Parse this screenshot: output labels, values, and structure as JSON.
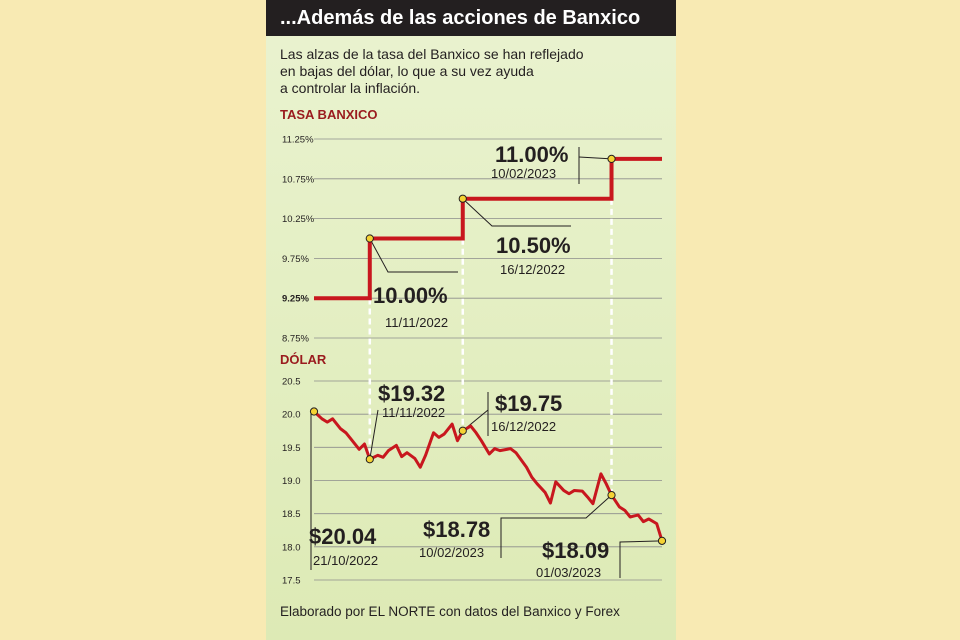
{
  "title": "...Además de las acciones de Banxico",
  "intro": [
    "Las alzas de la tasa del Banxico se han reflejado",
    "en bajas del dólar, lo que a su vez ayuda",
    "a controlar la inflación."
  ],
  "footer": "Elaborado por EL NORTE con datos del Banxico y Forex",
  "colors": {
    "line": "#c8171e",
    "label": "#9a1b1e",
    "marker": "#f5d233",
    "title_bg": "#231f20"
  },
  "chart_data": [
    {
      "type": "line",
      "section_label": "TASA BANXICO",
      "ylim": [
        8.75,
        11.25
      ],
      "yticks": [
        "11.25%",
        "10.75%",
        "10.25%",
        "9.75%",
        "9.25%",
        "8.75%"
      ],
      "step": true,
      "points": [
        {
          "date": "2022-10-21",
          "value": 9.25
        },
        {
          "date": "2022-11-11",
          "value": 10.0
        },
        {
          "date": "2022-12-16",
          "value": 10.5
        },
        {
          "date": "2023-02-10",
          "value": 11.0
        },
        {
          "date": "2023-03-01",
          "value": 11.0
        }
      ],
      "annotations": [
        {
          "value_label": "10.00%",
          "date_label": "11/11/2022"
        },
        {
          "value_label": "10.50%",
          "date_label": "16/12/2022"
        },
        {
          "value_label": "11.00%",
          "date_label": "10/02/2023"
        }
      ]
    },
    {
      "type": "line",
      "section_label": "DÓLAR",
      "ylim": [
        17.5,
        20.5
      ],
      "yticks": [
        "20.5",
        "20.0",
        "19.5",
        "19.0",
        "18.5",
        "18.0",
        "17.5"
      ],
      "points": [
        {
          "date": "2022-10-21",
          "value": 20.04
        },
        {
          "date": "2022-10-24",
          "value": 19.93
        },
        {
          "date": "2022-10-26",
          "value": 19.88
        },
        {
          "date": "2022-10-28",
          "value": 19.93
        },
        {
          "date": "2022-10-31",
          "value": 19.78
        },
        {
          "date": "2022-11-02",
          "value": 19.72
        },
        {
          "date": "2022-11-04",
          "value": 19.62
        },
        {
          "date": "2022-11-07",
          "value": 19.47
        },
        {
          "date": "2022-11-09",
          "value": 19.55
        },
        {
          "date": "2022-11-11",
          "value": 19.32
        },
        {
          "date": "2022-11-14",
          "value": 19.38
        },
        {
          "date": "2022-11-16",
          "value": 19.35
        },
        {
          "date": "2022-11-18",
          "value": 19.45
        },
        {
          "date": "2022-11-21",
          "value": 19.53
        },
        {
          "date": "2022-11-23",
          "value": 19.36
        },
        {
          "date": "2022-11-25",
          "value": 19.42
        },
        {
          "date": "2022-11-28",
          "value": 19.33
        },
        {
          "date": "2022-11-30",
          "value": 19.2
        },
        {
          "date": "2022-12-02",
          "value": 19.38
        },
        {
          "date": "2022-12-05",
          "value": 19.72
        },
        {
          "date": "2022-12-07",
          "value": 19.65
        },
        {
          "date": "2022-12-09",
          "value": 19.7
        },
        {
          "date": "2022-12-12",
          "value": 19.85
        },
        {
          "date": "2022-12-14",
          "value": 19.6
        },
        {
          "date": "2022-12-16",
          "value": 19.75
        },
        {
          "date": "2022-12-19",
          "value": 19.82
        },
        {
          "date": "2022-12-21",
          "value": 19.72
        },
        {
          "date": "2022-12-23",
          "value": 19.6
        },
        {
          "date": "2022-12-26",
          "value": 19.4
        },
        {
          "date": "2022-12-28",
          "value": 19.48
        },
        {
          "date": "2022-12-30",
          "value": 19.45
        },
        {
          "date": "2023-01-03",
          "value": 19.48
        },
        {
          "date": "2023-01-05",
          "value": 19.42
        },
        {
          "date": "2023-01-09",
          "value": 19.2
        },
        {
          "date": "2023-01-11",
          "value": 19.05
        },
        {
          "date": "2023-01-13",
          "value": 18.95
        },
        {
          "date": "2023-01-16",
          "value": 18.82
        },
        {
          "date": "2023-01-18",
          "value": 18.66
        },
        {
          "date": "2023-01-20",
          "value": 18.98
        },
        {
          "date": "2023-01-23",
          "value": 18.85
        },
        {
          "date": "2023-01-25",
          "value": 18.8
        },
        {
          "date": "2023-01-27",
          "value": 18.85
        },
        {
          "date": "2023-01-30",
          "value": 18.84
        },
        {
          "date": "2023-02-01",
          "value": 18.75
        },
        {
          "date": "2023-02-03",
          "value": 18.65
        },
        {
          "date": "2023-02-06",
          "value": 19.1
        },
        {
          "date": "2023-02-08",
          "value": 18.95
        },
        {
          "date": "2023-02-10",
          "value": 18.78
        },
        {
          "date": "2023-02-13",
          "value": 18.6
        },
        {
          "date": "2023-02-15",
          "value": 18.55
        },
        {
          "date": "2023-02-17",
          "value": 18.45
        },
        {
          "date": "2023-02-20",
          "value": 18.48
        },
        {
          "date": "2023-02-22",
          "value": 18.38
        },
        {
          "date": "2023-02-24",
          "value": 18.42
        },
        {
          "date": "2023-02-27",
          "value": 18.35
        },
        {
          "date": "2023-03-01",
          "value": 18.09
        }
      ],
      "annotations": [
        {
          "value_label": "$20.04",
          "date_label": "21/10/2022"
        },
        {
          "value_label": "$19.32",
          "date_label": "11/11/2022"
        },
        {
          "value_label": "$19.75",
          "date_label": "16/12/2022"
        },
        {
          "value_label": "$18.78",
          "date_label": "10/02/2023"
        },
        {
          "value_label": "$18.09",
          "date_label": "01/03/2023"
        }
      ]
    }
  ]
}
